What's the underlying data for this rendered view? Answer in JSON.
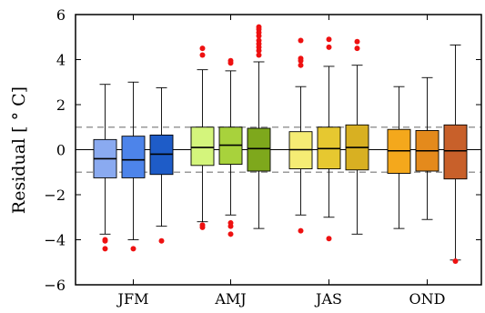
{
  "chart_data": {
    "type": "box",
    "title": "",
    "xlabel": "",
    "ylabel": "Residual [ ° C]",
    "ylim": [
      -6,
      6
    ],
    "yticks": [
      6,
      4,
      2,
      0,
      -2,
      -4,
      -6
    ],
    "grid": false,
    "reference_lines": [
      1,
      -1
    ],
    "categories": [
      "JFM",
      "AMJ",
      "JAS",
      "OND"
    ],
    "boxes": [
      {
        "group": "JFM",
        "color": "#8aaaf0",
        "min": -3.75,
        "q1": -1.25,
        "median": -0.4,
        "q3": 0.45,
        "max": 2.9,
        "outliers": [
          -4.0,
          -4.05,
          -4.4
        ]
      },
      {
        "group": "JFM",
        "color": "#4d84ea",
        "min": -4.0,
        "q1": -1.25,
        "median": -0.45,
        "q3": 0.6,
        "max": 3.0,
        "outliers": [
          -4.4
        ]
      },
      {
        "group": "JFM",
        "color": "#1e5cc8",
        "min": -3.4,
        "q1": -1.1,
        "median": -0.2,
        "q3": 0.65,
        "max": 2.75,
        "outliers": [
          -4.05
        ]
      },
      {
        "group": "AMJ",
        "color": "#d4f57c",
        "min": -3.2,
        "q1": -0.7,
        "median": 0.1,
        "q3": 1.0,
        "max": 3.55,
        "outliers": [
          4.5,
          4.2,
          -3.35,
          -3.45
        ]
      },
      {
        "group": "AMJ",
        "color": "#a8d23c",
        "min": -2.9,
        "q1": -0.65,
        "median": 0.2,
        "q3": 1.0,
        "max": 3.5,
        "outliers": [
          3.95,
          3.85,
          -3.25,
          -3.4,
          -3.75
        ]
      },
      {
        "group": "AMJ",
        "color": "#7ea81c",
        "min": -3.5,
        "q1": -0.95,
        "median": 0.05,
        "q3": 0.95,
        "max": 3.9,
        "outliers": [
          5.45,
          5.35,
          5.2,
          5.05,
          4.85,
          4.7,
          4.55,
          4.4,
          4.2
        ]
      },
      {
        "group": "JAS",
        "color": "#f5ec74",
        "min": -2.9,
        "q1": -0.85,
        "median": 0.0,
        "q3": 0.8,
        "max": 2.8,
        "outliers": [
          4.85,
          4.05,
          3.95,
          3.75,
          -3.6
        ]
      },
      {
        "group": "JAS",
        "color": "#e6c830",
        "min": -3.0,
        "q1": -0.85,
        "median": 0.05,
        "q3": 1.0,
        "max": 3.7,
        "outliers": [
          4.9,
          4.55,
          -3.95
        ]
      },
      {
        "group": "JAS",
        "color": "#d8b022",
        "min": -3.75,
        "q1": -0.9,
        "median": 0.1,
        "q3": 1.1,
        "max": 3.75,
        "outliers": [
          4.8,
          4.5
        ]
      },
      {
        "group": "OND",
        "color": "#f4a81c",
        "min": -3.5,
        "q1": -1.05,
        "median": -0.05,
        "q3": 0.9,
        "max": 2.8,
        "outliers": []
      },
      {
        "group": "OND",
        "color": "#e48a1c",
        "min": -3.1,
        "q1": -0.95,
        "median": -0.05,
        "q3": 0.85,
        "max": 3.2,
        "outliers": []
      },
      {
        "group": "OND",
        "color": "#c8602a",
        "min": -4.9,
        "q1": -1.3,
        "median": -0.05,
        "q3": 1.1,
        "max": 4.65,
        "outliers": [
          -4.95
        ]
      }
    ]
  }
}
